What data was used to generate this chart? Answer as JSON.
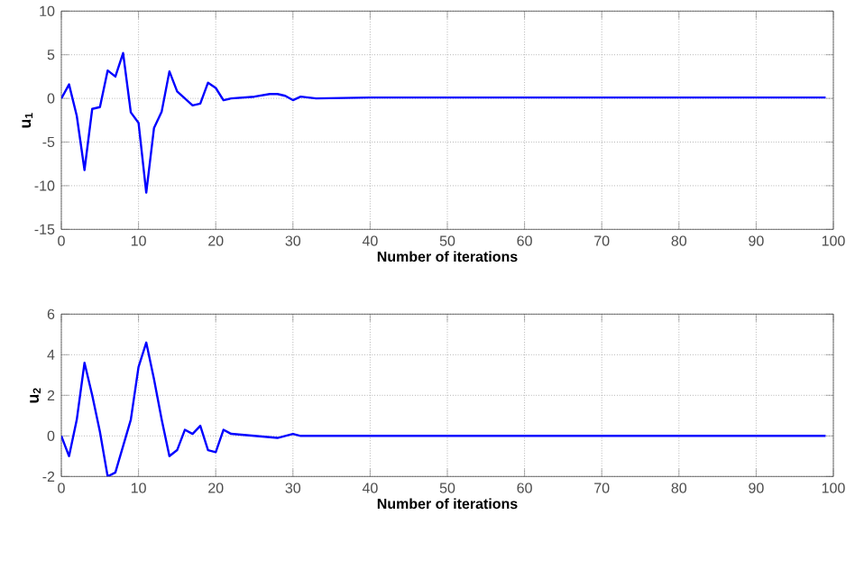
{
  "chart_data": [
    {
      "type": "line",
      "xlabel": "Number of iterations",
      "ylabel": "u$_{1}$",
      "xlim": [
        0,
        100
      ],
      "ylim": [
        -15,
        10
      ],
      "xticks": [
        0,
        10,
        20,
        30,
        40,
        50,
        60,
        70,
        80,
        90,
        100
      ],
      "yticks": [
        -15,
        -10,
        -5,
        0,
        5,
        10
      ],
      "grid": true,
      "marker": "none",
      "line_style": "solid",
      "series": [
        {
          "color": "#0000ff",
          "x": [
            0,
            1,
            2,
            3,
            4,
            5,
            6,
            7,
            8,
            9,
            10,
            11,
            12,
            13,
            14,
            15,
            16,
            17,
            18,
            19,
            20,
            21,
            22,
            25,
            27,
            28,
            29,
            30,
            31,
            33,
            40,
            99
          ],
          "values": [
            0,
            1.6,
            -2,
            -8.2,
            -1.2,
            -1,
            3.2,
            2.5,
            5.2,
            -1.6,
            -2.8,
            -10.8,
            -3.4,
            -1.5,
            3.1,
            0.8,
            0,
            -0.8,
            -0.6,
            1.8,
            1.2,
            -0.2,
            0,
            0.2,
            0.5,
            0.5,
            0.3,
            -0.2,
            0.2,
            0,
            0.1,
            0.1
          ]
        }
      ]
    },
    {
      "type": "line",
      "xlabel": "Number of iterations",
      "ylabel": "u$_{2}$",
      "xlim": [
        0,
        100
      ],
      "ylim": [
        -2,
        6
      ],
      "xticks": [
        0,
        10,
        20,
        30,
        40,
        50,
        60,
        70,
        80,
        90,
        100
      ],
      "yticks": [
        -2,
        0,
        2,
        4,
        6
      ],
      "grid": true,
      "marker": "none",
      "line_style": "solid",
      "series": [
        {
          "color": "#0000ff",
          "x": [
            0,
            1,
            2,
            3,
            4,
            5,
            6,
            7,
            8,
            9,
            10,
            11,
            12,
            13,
            14,
            15,
            16,
            17,
            18,
            19,
            20,
            21,
            22,
            25,
            28,
            30,
            31,
            35,
            99
          ],
          "values": [
            0,
            -1,
            0.8,
            3.6,
            2,
            0.2,
            -2,
            -1.8,
            -0.5,
            0.8,
            3.4,
            4.6,
            2.8,
            0.8,
            -1,
            -0.7,
            0.3,
            0.1,
            0.5,
            -0.7,
            -0.8,
            0.3,
            0.1,
            0,
            -0.1,
            0.1,
            0,
            0,
            0
          ]
        }
      ]
    }
  ]
}
